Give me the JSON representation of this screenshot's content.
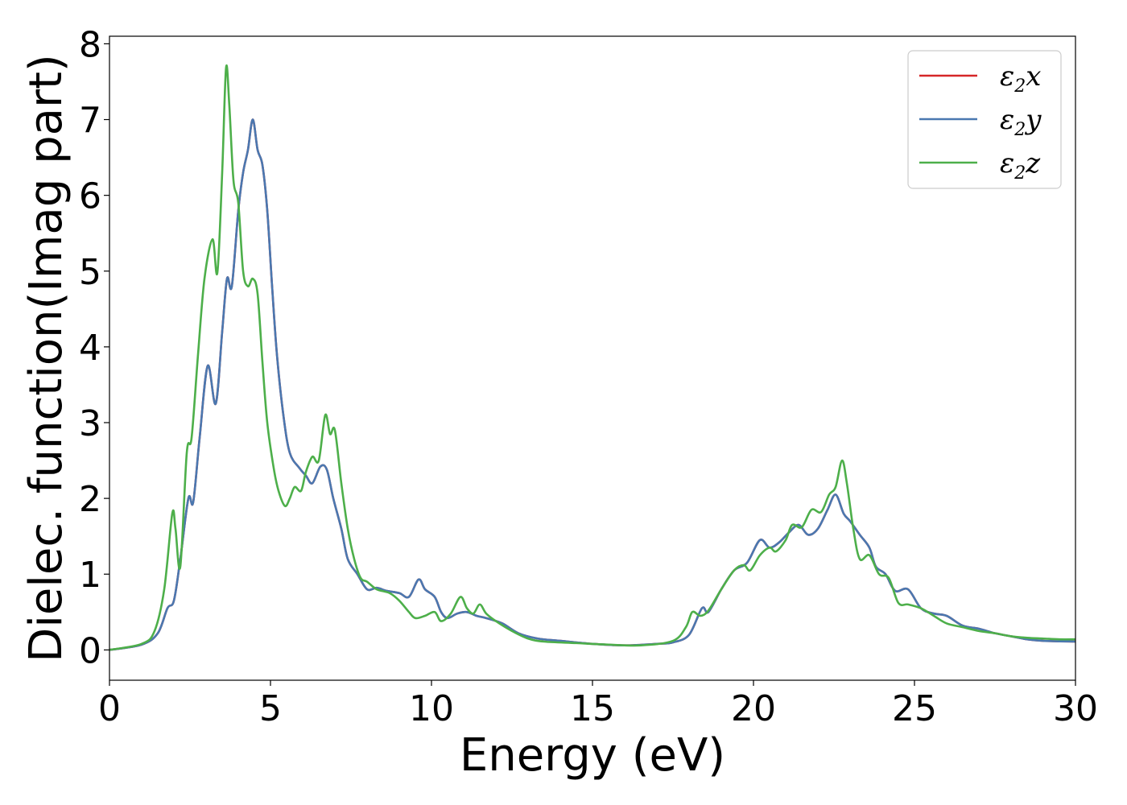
{
  "chart_data": {
    "type": "line",
    "title": "",
    "xlabel": "Energy (eV)",
    "ylabel": "Dielec. function(Imag part)",
    "xlim": [
      0,
      30
    ],
    "ylim": [
      -0.4,
      8.1
    ],
    "xticks": [
      0,
      5,
      10,
      15,
      20,
      25,
      30
    ],
    "yticks": [
      0,
      1,
      2,
      3,
      4,
      5,
      6,
      7,
      8
    ],
    "grid": false,
    "legend_position": "top-right",
    "legend": [
      {
        "sym": "ε",
        "sub": "2",
        "var": "x",
        "color": "#d62728"
      },
      {
        "sym": "ε",
        "sub": "2",
        "var": "y",
        "color": "#4a78b0"
      },
      {
        "sym": "ε",
        "sub": "2",
        "var": "z",
        "color": "#4daf4a"
      }
    ],
    "series": [
      {
        "color": "#d62728",
        "points": [
          [
            0,
            0
          ],
          [
            1,
            0.07
          ],
          [
            1.5,
            0.22
          ],
          [
            1.8,
            0.55
          ],
          [
            2.0,
            0.65
          ],
          [
            2.2,
            1.2
          ],
          [
            2.45,
            2.0
          ],
          [
            2.6,
            1.95
          ],
          [
            2.8,
            2.8
          ],
          [
            3.05,
            3.75
          ],
          [
            3.3,
            3.25
          ],
          [
            3.5,
            4.2
          ],
          [
            3.65,
            4.9
          ],
          [
            3.8,
            4.8
          ],
          [
            4.0,
            5.8
          ],
          [
            4.15,
            6.3
          ],
          [
            4.3,
            6.6
          ],
          [
            4.45,
            7.0
          ],
          [
            4.6,
            6.6
          ],
          [
            4.75,
            6.4
          ],
          [
            4.9,
            5.8
          ],
          [
            5.05,
            4.8
          ],
          [
            5.2,
            3.9
          ],
          [
            5.4,
            3.1
          ],
          [
            5.6,
            2.6
          ],
          [
            5.9,
            2.4
          ],
          [
            6.1,
            2.3
          ],
          [
            6.3,
            2.2
          ],
          [
            6.55,
            2.42
          ],
          [
            6.75,
            2.38
          ],
          [
            6.95,
            2.0
          ],
          [
            7.2,
            1.6
          ],
          [
            7.4,
            1.2
          ],
          [
            7.7,
            1.0
          ],
          [
            8.0,
            0.8
          ],
          [
            8.3,
            0.82
          ],
          [
            8.6,
            0.78
          ],
          [
            9.0,
            0.75
          ],
          [
            9.3,
            0.7
          ],
          [
            9.6,
            0.93
          ],
          [
            9.8,
            0.8
          ],
          [
            10.1,
            0.7
          ],
          [
            10.3,
            0.5
          ],
          [
            10.5,
            0.42
          ],
          [
            10.8,
            0.48
          ],
          [
            11.1,
            0.5
          ],
          [
            11.4,
            0.45
          ],
          [
            11.7,
            0.42
          ],
          [
            12.2,
            0.35
          ],
          [
            12.7,
            0.22
          ],
          [
            13.3,
            0.15
          ],
          [
            14.0,
            0.12
          ],
          [
            15.0,
            0.08
          ],
          [
            16.0,
            0.06
          ],
          [
            17.0,
            0.08
          ],
          [
            17.5,
            0.1
          ],
          [
            18.0,
            0.2
          ],
          [
            18.4,
            0.55
          ],
          [
            18.6,
            0.5
          ],
          [
            19.0,
            0.8
          ],
          [
            19.4,
            1.05
          ],
          [
            19.8,
            1.15
          ],
          [
            20.2,
            1.45
          ],
          [
            20.5,
            1.35
          ],
          [
            20.8,
            1.42
          ],
          [
            21.1,
            1.55
          ],
          [
            21.4,
            1.65
          ],
          [
            21.7,
            1.52
          ],
          [
            22.0,
            1.6
          ],
          [
            22.3,
            1.85
          ],
          [
            22.55,
            2.05
          ],
          [
            22.8,
            1.8
          ],
          [
            23.0,
            1.7
          ],
          [
            23.3,
            1.52
          ],
          [
            23.6,
            1.35
          ],
          [
            23.8,
            1.1
          ],
          [
            24.1,
            1.0
          ],
          [
            24.4,
            0.78
          ],
          [
            24.8,
            0.8
          ],
          [
            25.2,
            0.55
          ],
          [
            25.6,
            0.48
          ],
          [
            26.0,
            0.45
          ],
          [
            26.5,
            0.32
          ],
          [
            27.0,
            0.28
          ],
          [
            27.5,
            0.22
          ],
          [
            28.0,
            0.18
          ],
          [
            28.5,
            0.14
          ],
          [
            29.0,
            0.12
          ],
          [
            30.0,
            0.11
          ]
        ]
      },
      {
        "color": "#4a78b0",
        "points": [
          [
            0,
            0
          ],
          [
            1,
            0.07
          ],
          [
            1.5,
            0.22
          ],
          [
            1.8,
            0.55
          ],
          [
            2.0,
            0.65
          ],
          [
            2.2,
            1.2
          ],
          [
            2.45,
            2.0
          ],
          [
            2.6,
            1.95
          ],
          [
            2.8,
            2.8
          ],
          [
            3.05,
            3.75
          ],
          [
            3.3,
            3.25
          ],
          [
            3.5,
            4.2
          ],
          [
            3.65,
            4.9
          ],
          [
            3.8,
            4.8
          ],
          [
            4.0,
            5.8
          ],
          [
            4.15,
            6.3
          ],
          [
            4.3,
            6.6
          ],
          [
            4.45,
            7.0
          ],
          [
            4.6,
            6.6
          ],
          [
            4.75,
            6.4
          ],
          [
            4.9,
            5.8
          ],
          [
            5.05,
            4.8
          ],
          [
            5.2,
            3.9
          ],
          [
            5.4,
            3.1
          ],
          [
            5.6,
            2.6
          ],
          [
            5.9,
            2.4
          ],
          [
            6.1,
            2.3
          ],
          [
            6.3,
            2.2
          ],
          [
            6.55,
            2.42
          ],
          [
            6.75,
            2.38
          ],
          [
            6.95,
            2.0
          ],
          [
            7.2,
            1.6
          ],
          [
            7.4,
            1.2
          ],
          [
            7.7,
            1.0
          ],
          [
            8.0,
            0.8
          ],
          [
            8.3,
            0.82
          ],
          [
            8.6,
            0.78
          ],
          [
            9.0,
            0.75
          ],
          [
            9.3,
            0.7
          ],
          [
            9.6,
            0.93
          ],
          [
            9.8,
            0.8
          ],
          [
            10.1,
            0.7
          ],
          [
            10.3,
            0.5
          ],
          [
            10.5,
            0.42
          ],
          [
            10.8,
            0.48
          ],
          [
            11.1,
            0.5
          ],
          [
            11.4,
            0.45
          ],
          [
            11.7,
            0.42
          ],
          [
            12.2,
            0.35
          ],
          [
            12.7,
            0.22
          ],
          [
            13.3,
            0.15
          ],
          [
            14.0,
            0.12
          ],
          [
            15.0,
            0.08
          ],
          [
            16.0,
            0.06
          ],
          [
            17.0,
            0.08
          ],
          [
            17.5,
            0.1
          ],
          [
            18.0,
            0.2
          ],
          [
            18.4,
            0.55
          ],
          [
            18.6,
            0.5
          ],
          [
            19.0,
            0.8
          ],
          [
            19.4,
            1.05
          ],
          [
            19.8,
            1.15
          ],
          [
            20.2,
            1.45
          ],
          [
            20.5,
            1.35
          ],
          [
            20.8,
            1.42
          ],
          [
            21.1,
            1.55
          ],
          [
            21.4,
            1.65
          ],
          [
            21.7,
            1.52
          ],
          [
            22.0,
            1.6
          ],
          [
            22.3,
            1.85
          ],
          [
            22.55,
            2.05
          ],
          [
            22.8,
            1.8
          ],
          [
            23.0,
            1.7
          ],
          [
            23.3,
            1.52
          ],
          [
            23.6,
            1.35
          ],
          [
            23.8,
            1.1
          ],
          [
            24.1,
            1.0
          ],
          [
            24.4,
            0.78
          ],
          [
            24.8,
            0.8
          ],
          [
            25.2,
            0.55
          ],
          [
            25.6,
            0.48
          ],
          [
            26.0,
            0.45
          ],
          [
            26.5,
            0.32
          ],
          [
            27.0,
            0.28
          ],
          [
            27.5,
            0.22
          ],
          [
            28.0,
            0.18
          ],
          [
            28.5,
            0.14
          ],
          [
            29.0,
            0.12
          ],
          [
            30.0,
            0.11
          ]
        ]
      },
      {
        "color": "#4daf4a",
        "points": [
          [
            0,
            0
          ],
          [
            1,
            0.08
          ],
          [
            1.4,
            0.25
          ],
          [
            1.7,
            0.8
          ],
          [
            1.95,
            1.8
          ],
          [
            2.05,
            1.6
          ],
          [
            2.2,
            1.1
          ],
          [
            2.4,
            2.6
          ],
          [
            2.55,
            2.8
          ],
          [
            2.75,
            3.9
          ],
          [
            2.95,
            4.9
          ],
          [
            3.2,
            5.42
          ],
          [
            3.35,
            4.98
          ],
          [
            3.5,
            6.3
          ],
          [
            3.62,
            7.68
          ],
          [
            3.72,
            7.2
          ],
          [
            3.85,
            6.2
          ],
          [
            4.0,
            5.9
          ],
          [
            4.15,
            5.0
          ],
          [
            4.3,
            4.8
          ],
          [
            4.45,
            4.9
          ],
          [
            4.6,
            4.7
          ],
          [
            4.75,
            3.8
          ],
          [
            4.9,
            3.0
          ],
          [
            5.1,
            2.4
          ],
          [
            5.25,
            2.1
          ],
          [
            5.45,
            1.9
          ],
          [
            5.6,
            2.0
          ],
          [
            5.75,
            2.15
          ],
          [
            5.95,
            2.1
          ],
          [
            6.1,
            2.35
          ],
          [
            6.3,
            2.55
          ],
          [
            6.5,
            2.5
          ],
          [
            6.7,
            3.1
          ],
          [
            6.85,
            2.85
          ],
          [
            7.0,
            2.9
          ],
          [
            7.2,
            2.2
          ],
          [
            7.4,
            1.6
          ],
          [
            7.6,
            1.2
          ],
          [
            7.8,
            0.95
          ],
          [
            8.0,
            0.9
          ],
          [
            8.3,
            0.8
          ],
          [
            8.7,
            0.75
          ],
          [
            9.0,
            0.65
          ],
          [
            9.3,
            0.5
          ],
          [
            9.5,
            0.42
          ],
          [
            9.8,
            0.45
          ],
          [
            10.1,
            0.5
          ],
          [
            10.3,
            0.38
          ],
          [
            10.6,
            0.48
          ],
          [
            10.9,
            0.7
          ],
          [
            11.1,
            0.55
          ],
          [
            11.3,
            0.48
          ],
          [
            11.5,
            0.6
          ],
          [
            11.7,
            0.48
          ],
          [
            12.0,
            0.38
          ],
          [
            12.5,
            0.25
          ],
          [
            13.0,
            0.15
          ],
          [
            13.5,
            0.11
          ],
          [
            14.5,
            0.09
          ],
          [
            15.5,
            0.07
          ],
          [
            16.5,
            0.06
          ],
          [
            17.5,
            0.12
          ],
          [
            17.9,
            0.3
          ],
          [
            18.1,
            0.5
          ],
          [
            18.35,
            0.45
          ],
          [
            18.6,
            0.52
          ],
          [
            19.0,
            0.8
          ],
          [
            19.4,
            1.05
          ],
          [
            19.7,
            1.12
          ],
          [
            19.9,
            1.05
          ],
          [
            20.2,
            1.25
          ],
          [
            20.5,
            1.35
          ],
          [
            20.7,
            1.3
          ],
          [
            21.0,
            1.45
          ],
          [
            21.2,
            1.65
          ],
          [
            21.5,
            1.62
          ],
          [
            21.8,
            1.85
          ],
          [
            22.1,
            1.82
          ],
          [
            22.35,
            2.05
          ],
          [
            22.55,
            2.15
          ],
          [
            22.75,
            2.5
          ],
          [
            22.9,
            2.2
          ],
          [
            23.1,
            1.6
          ],
          [
            23.3,
            1.2
          ],
          [
            23.6,
            1.25
          ],
          [
            23.9,
            1.0
          ],
          [
            24.2,
            0.95
          ],
          [
            24.5,
            0.62
          ],
          [
            24.8,
            0.6
          ],
          [
            25.2,
            0.55
          ],
          [
            25.6,
            0.45
          ],
          [
            26.0,
            0.35
          ],
          [
            26.5,
            0.3
          ],
          [
            27.0,
            0.25
          ],
          [
            27.5,
            0.22
          ],
          [
            28.0,
            0.18
          ],
          [
            28.5,
            0.16
          ],
          [
            29.0,
            0.15
          ],
          [
            29.5,
            0.14
          ],
          [
            30.0,
            0.14
          ]
        ]
      }
    ]
  }
}
